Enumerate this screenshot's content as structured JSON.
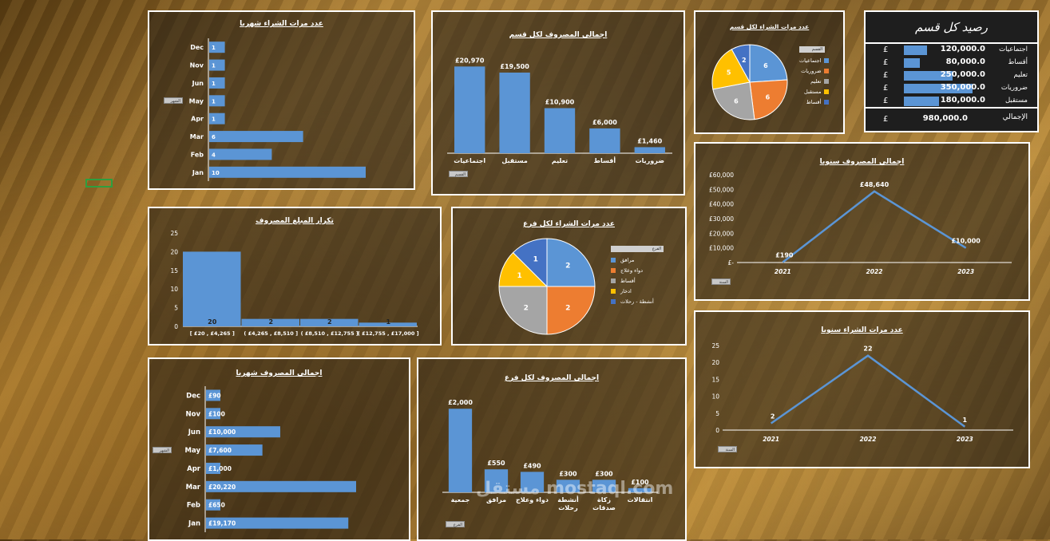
{
  "balance": {
    "title": "رصيد كل قسم",
    "currency": "£",
    "rows": [
      {
        "label": "اجتماعيات",
        "value": "120,000.0",
        "num": 120000
      },
      {
        "label": "أقساط",
        "value": "80,000.0",
        "num": 80000
      },
      {
        "label": "تعليم",
        "value": "250,000.0",
        "num": 250000
      },
      {
        "label": "ضروريات",
        "value": "350,000.0",
        "num": 350000
      },
      {
        "label": "مستقبل",
        "value": "180,000.0",
        "num": 180000
      }
    ],
    "total_label": "الإجمالي",
    "total_value": "980,000.0"
  },
  "watermark": "مستقل mostaql.com",
  "chart_data": [
    {
      "id": "monthly_count",
      "type": "bar",
      "orientation": "horizontal",
      "title": "عدد مرات الشراء شهريا",
      "categories": [
        "Dec",
        "Nov",
        "Jun",
        "May",
        "Apr",
        "Mar",
        "Feb",
        "Jan"
      ],
      "values": [
        1,
        1,
        1,
        1,
        1,
        6,
        4,
        10
      ],
      "labels": [
        "1",
        "1",
        "1",
        "1",
        "1",
        "6",
        "4",
        "10"
      ],
      "xlim": [
        0,
        10
      ],
      "slicer": "الشهر"
    },
    {
      "id": "dept_spend",
      "type": "bar",
      "title": "اجمالي المصروف لكل قسم",
      "categories": [
        "اجتماعيات",
        "مستقبل",
        "تعليم",
        "أقساط",
        "ضروريات"
      ],
      "values": [
        20970,
        19500,
        10900,
        6000,
        1460
      ],
      "labels": [
        "£20,970",
        "£19,500",
        "£10,900",
        "£6,000",
        "£1,460"
      ],
      "ylim": [
        0,
        22000
      ],
      "slicer": "القسم"
    },
    {
      "id": "dept_count",
      "type": "pie",
      "title": "عدد مرات الشراء لكل قسم",
      "categories": [
        "اجتماعيات",
        "ضروريات",
        "تعليم",
        "مستقبل",
        "أقساط"
      ],
      "values": [
        6,
        6,
        6,
        5,
        2
      ],
      "colors": [
        "#5b95d5",
        "#ed7d31",
        "#a5a5a5",
        "#ffc000",
        "#4472c4"
      ],
      "legend_title": "القسم",
      "legend": "right"
    },
    {
      "id": "yearly_spend",
      "type": "line",
      "title": "اجمالي المصروف سنويا",
      "x": [
        "2021",
        "2022",
        "2023"
      ],
      "values": [
        190,
        48640,
        10000
      ],
      "labels": [
        "£190",
        "£48,640",
        "£10,000"
      ],
      "yticks": [
        "£60,000",
        "£50,000",
        "£40,000",
        "£30,000",
        "£20,000",
        "£10,000",
        "£-"
      ],
      "ylim": [
        0,
        60000
      ],
      "slicer": "السنة"
    },
    {
      "id": "amount_freq",
      "type": "bar",
      "title": "تكرار المبلغ المصروف",
      "categories": [
        "[ £20 , £4,265 ]",
        "( £4,265 , £8,510 ]",
        "( £8,510 , £12,755 ]",
        "( £12,755 , £17,000 ]"
      ],
      "values": [
        20,
        2,
        2,
        1
      ],
      "labels": [
        "20",
        "2",
        "2",
        "1"
      ],
      "yticks": [
        "25",
        "20",
        "15",
        "10",
        "5",
        "0"
      ],
      "ylim": [
        0,
        25
      ]
    },
    {
      "id": "branch_count",
      "type": "pie",
      "title": "عدد مرات الشراء لكل فرع",
      "categories": [
        "مرافق",
        "دواء وعلاج",
        "أقساط",
        "ادخار",
        "أنشطة - رحلات"
      ],
      "values": [
        2,
        2,
        2,
        1,
        1
      ],
      "colors": [
        "#5b95d5",
        "#ed7d31",
        "#a5a5a5",
        "#ffc000",
        "#4472c4"
      ],
      "legend_title": "الفرع",
      "legend": "right"
    },
    {
      "id": "yearly_count",
      "type": "line",
      "title": "عدد مرات الشراء سنويا",
      "x": [
        "2021",
        "2022",
        "2023"
      ],
      "values": [
        2,
        22,
        1
      ],
      "labels": [
        "2",
        "22",
        "1"
      ],
      "yticks": [
        "25",
        "20",
        "15",
        "10",
        "5",
        "0"
      ],
      "ylim": [
        0,
        25
      ],
      "slicer": "السنة"
    },
    {
      "id": "monthly_spend",
      "type": "bar",
      "orientation": "horizontal",
      "title": "اجمالي المصروف شهريا",
      "categories": [
        "Dec",
        "Nov",
        "Jun",
        "May",
        "Apr",
        "Mar",
        "Feb",
        "Jan"
      ],
      "values": [
        90,
        100,
        10000,
        7600,
        1000,
        20220,
        650,
        19170
      ],
      "labels": [
        "£90",
        "£100",
        "£10,000",
        "£7,600",
        "£1,000",
        "£20,220",
        "£650",
        "£19,170"
      ],
      "xlim": [
        0,
        20220
      ],
      "slicer": "الشهر"
    },
    {
      "id": "branch_spend",
      "type": "bar",
      "title": "اجمالي المصروف لكل فرع",
      "categories": [
        "جمعية",
        "مرافق",
        "دواء وعلاج",
        "أنشطة - رحلات",
        "زكاة - صدقات",
        "انتقالات"
      ],
      "values": [
        2000,
        550,
        490,
        300,
        300,
        100
      ],
      "labels": [
        "£2,000",
        "£550",
        "£490",
        "£300",
        "£300",
        "£100"
      ],
      "ylim": [
        0,
        2100
      ],
      "slicer": "الفرع"
    }
  ]
}
